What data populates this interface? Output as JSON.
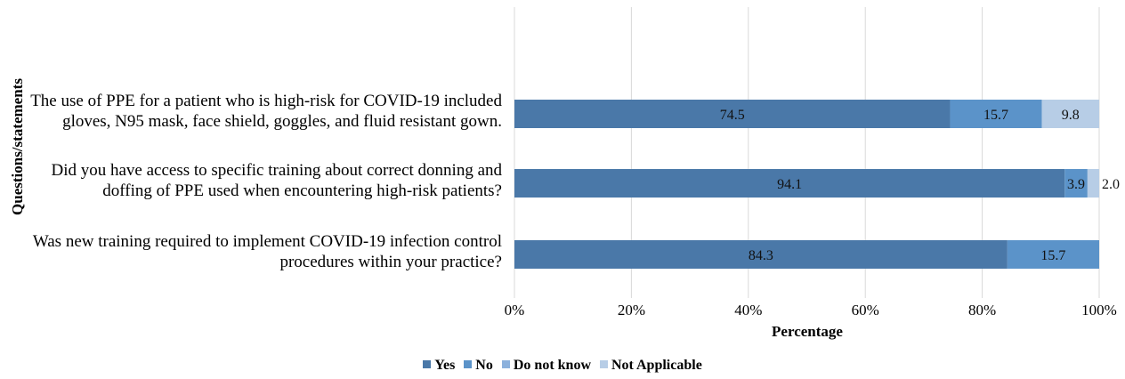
{
  "chart_data": {
    "type": "bar",
    "orientation": "horizontal",
    "stacked": true,
    "categories": [
      "The use of PPE for a patient who is high-risk for COVID-19 included gloves, N95 mask, face shield, goggles, and fluid resistant gown.",
      "Did you have access to specific training about correct donning and doffing of PPE used when encountering high-risk patients?",
      "Was new training required to implement COVID-19 infection control procedures within your practice?"
    ],
    "category_lines": [
      [
        "The use of PPE for a patient who is high-risk for COVID-19 included",
        "gloves, N95 mask, face shield, goggles, and fluid resistant gown."
      ],
      [
        "Did you have access to specific training about correct donning and",
        "doffing of PPE used when encountering high-risk patients?"
      ],
      [
        "Was new training required to implement COVID-19 infection control",
        "procedures within your practice?"
      ]
    ],
    "series": [
      {
        "name": "Yes",
        "color": "#4a78a8",
        "values": [
          74.5,
          94.1,
          84.3
        ],
        "labels": [
          "74.5",
          "94.1",
          "84.3"
        ]
      },
      {
        "name": "No",
        "color": "#5b93c9",
        "values": [
          15.7,
          3.9,
          15.7
        ],
        "labels": [
          "15.7",
          "3.9",
          "15.7"
        ]
      },
      {
        "name": "Do not know",
        "color": "#8cb1dc",
        "values": [
          0,
          0,
          0
        ],
        "labels": [
          "",
          "",
          ""
        ]
      },
      {
        "name": "Not Applicable",
        "color": "#b7cde6",
        "values": [
          9.8,
          2.0,
          0
        ],
        "labels": [
          "9.8",
          "2.0",
          ""
        ]
      }
    ],
    "xticks": [
      "0%",
      "20%",
      "40%",
      "60%",
      "80%",
      "100%"
    ],
    "xlim": [
      0,
      100
    ],
    "xlabel": "Percentage",
    "ylabel": "Questions/statements",
    "grid": "vertical",
    "legend_position": "bottom"
  }
}
